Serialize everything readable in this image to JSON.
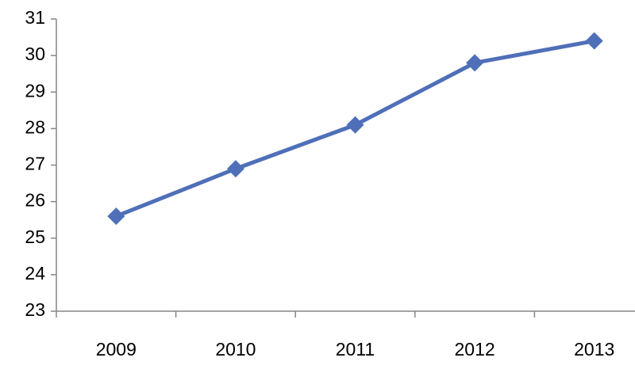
{
  "chart_data": {
    "type": "line",
    "categories": [
      "2009",
      "2010",
      "2011",
      "2012",
      "2013"
    ],
    "values": [
      25.6,
      26.9,
      28.1,
      29.8,
      30.4
    ],
    "color": "#4f6fb8",
    "ylim": [
      23,
      31
    ],
    "yticks": [
      23,
      24,
      25,
      26,
      27,
      28,
      29,
      30,
      31
    ],
    "grid": false
  }
}
